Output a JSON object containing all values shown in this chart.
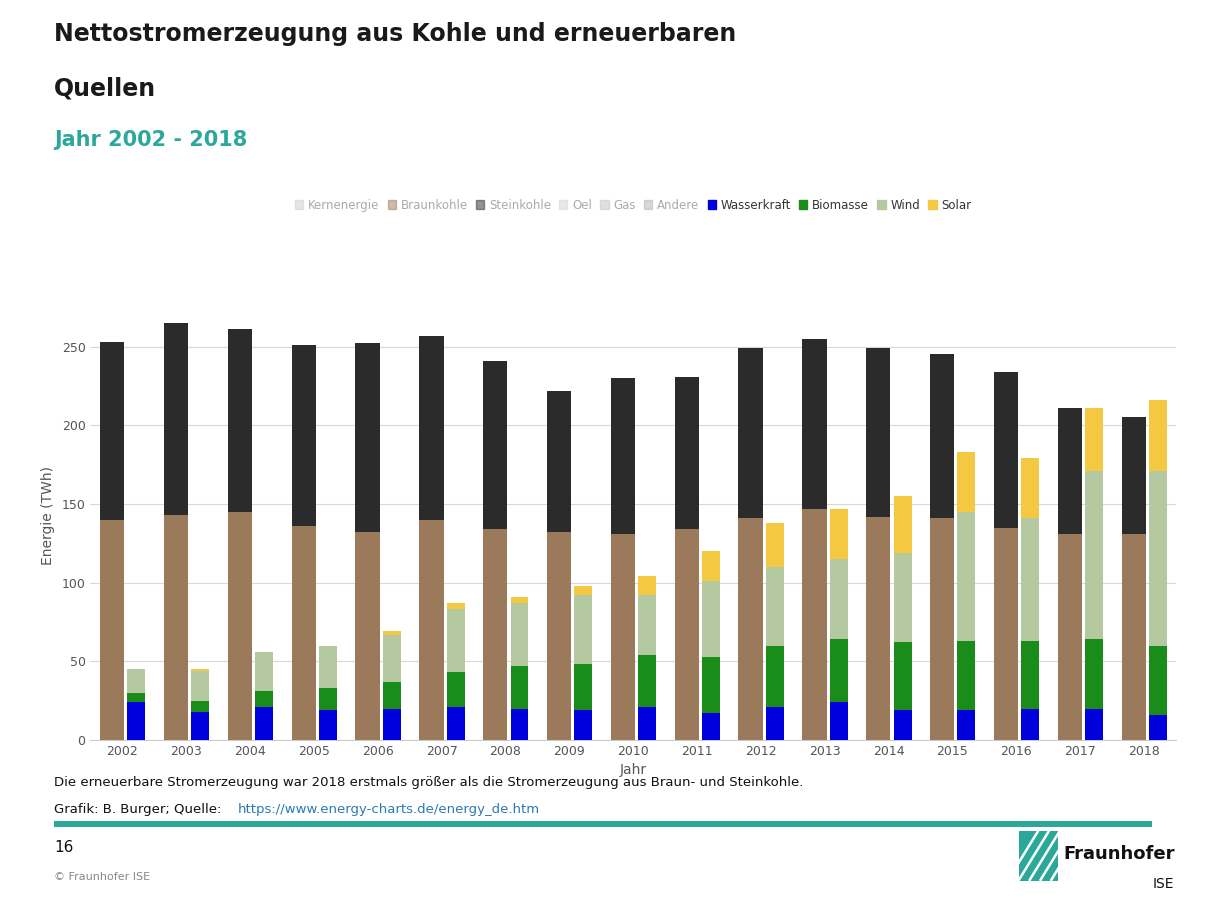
{
  "title_line1": "Nettostromerzeugung aus Kohle und erneuerbaren",
  "title_line2": "Quellen",
  "subtitle": "Jahr 2002 - 2018",
  "title_color": "#1a1a1a",
  "subtitle_color": "#2ca89a",
  "xlabel": "Jahr",
  "ylabel": "Energie (TWh)",
  "years": [
    2002,
    2003,
    2004,
    2005,
    2006,
    2007,
    2008,
    2009,
    2010,
    2011,
    2012,
    2013,
    2014,
    2015,
    2016,
    2017,
    2018
  ],
  "coal": {
    "Braunkohle": [
      140,
      143,
      145,
      136,
      132,
      140,
      134,
      132,
      131,
      134,
      141,
      147,
      142,
      141,
      135,
      131,
      131
    ],
    "Steinkohle": [
      113,
      122,
      116,
      115,
      120,
      117,
      107,
      90,
      99,
      97,
      108,
      108,
      107,
      104,
      99,
      80,
      74
    ]
  },
  "renew": {
    "Wasserkraft": [
      24,
      18,
      21,
      19,
      20,
      21,
      20,
      19,
      21,
      17,
      21,
      24,
      19,
      19,
      20,
      20,
      16
    ],
    "Biomasse": [
      6,
      7,
      10,
      14,
      17,
      22,
      27,
      29,
      33,
      36,
      39,
      40,
      43,
      44,
      43,
      44,
      44
    ],
    "Wind": [
      15,
      19,
      25,
      27,
      30,
      40,
      40,
      44,
      38,
      48,
      50,
      51,
      57,
      82,
      78,
      107,
      111
    ],
    "Solar": [
      0,
      1,
      0,
      0,
      2,
      4,
      4,
      6,
      12,
      19,
      28,
      32,
      36,
      38,
      38,
      40,
      45
    ]
  },
  "colors": {
    "Braunkohle": "#9b7a5b",
    "Steinkohle": "#2b2b2b",
    "Wasserkraft": "#0000dd",
    "Biomasse": "#1a8c1a",
    "Wind": "#b5c9a0",
    "Solar": "#f5c842",
    "Kernenergie": "#cccccc",
    "Oel": "#d3d3d3",
    "Gas": "#c0c0c0",
    "Andere": "#b0b0b0"
  },
  "legend_order": [
    "Kernenergie",
    "Braunkohle",
    "Steinkohle",
    "Oel",
    "Gas",
    "Andere",
    "Wasserkraft",
    "Biomasse",
    "Wind",
    "Solar"
  ],
  "footer_text1": "Die erneuerbare Stromerzeugung war 2018 erstmals größer als die Stromerzeugung aus Braun- und Steinkohle.",
  "footer_text2_plain": "Grafik: B. Burger; Quelle: ",
  "footer_text2_link": "https://www.energy-charts.de/energy_de.htm",
  "page_number": "16",
  "copyright": "© Fraunhofer ISE",
  "teal_color": "#2ca89a",
  "background_color": "#ffffff",
  "ylim": [
    0,
    285
  ],
  "yticks": [
    0,
    50,
    100,
    150,
    200,
    250
  ]
}
